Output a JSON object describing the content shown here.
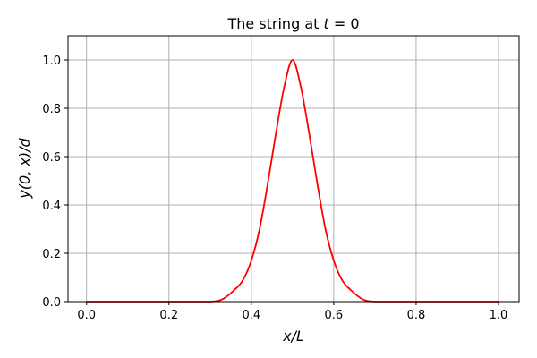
{
  "chart_data": {
    "type": "line",
    "title_prefix": "The string at ",
    "title_math": "t",
    "title_suffix": " = 0",
    "xlabel": "x/L",
    "ylabel": "y(0, x)/d",
    "xlim": [
      -0.045,
      1.05
    ],
    "ylim": [
      0,
      1.1
    ],
    "xticks": [
      0.0,
      0.2,
      0.4,
      0.6,
      0.8,
      1.0
    ],
    "xtick_labels": [
      "0.0",
      "0.2",
      "0.4",
      "0.6",
      "0.8",
      "1.0"
    ],
    "yticks": [
      0.0,
      0.2,
      0.4,
      0.6,
      0.8,
      1.0
    ],
    "ytick_labels": [
      "0.0",
      "0.2",
      "0.4",
      "0.6",
      "0.8",
      "1.0"
    ],
    "grid": true,
    "line_color": "#ff0000",
    "grid_color": "#b0b0b0",
    "series": [
      {
        "x": [
          0.0,
          0.05,
          0.1,
          0.15,
          0.2,
          0.25,
          0.3,
          0.33,
          0.36,
          0.38,
          0.4,
          0.42,
          0.44,
          0.46,
          0.48,
          0.5,
          0.52,
          0.54,
          0.56,
          0.58,
          0.6,
          0.62,
          0.64,
          0.67,
          0.7,
          0.75,
          0.8,
          0.85,
          0.9,
          0.95,
          1.0
        ],
        "y": [
          0.0,
          0.0,
          0.0,
          0.0,
          0.0,
          0.0,
          0.0,
          0.01,
          0.05,
          0.09,
          0.17,
          0.3,
          0.49,
          0.7,
          0.89,
          1.0,
          0.89,
          0.7,
          0.49,
          0.3,
          0.17,
          0.09,
          0.05,
          0.01,
          0.0,
          0.0,
          0.0,
          0.0,
          0.0,
          0.0,
          0.0
        ]
      }
    ]
  }
}
